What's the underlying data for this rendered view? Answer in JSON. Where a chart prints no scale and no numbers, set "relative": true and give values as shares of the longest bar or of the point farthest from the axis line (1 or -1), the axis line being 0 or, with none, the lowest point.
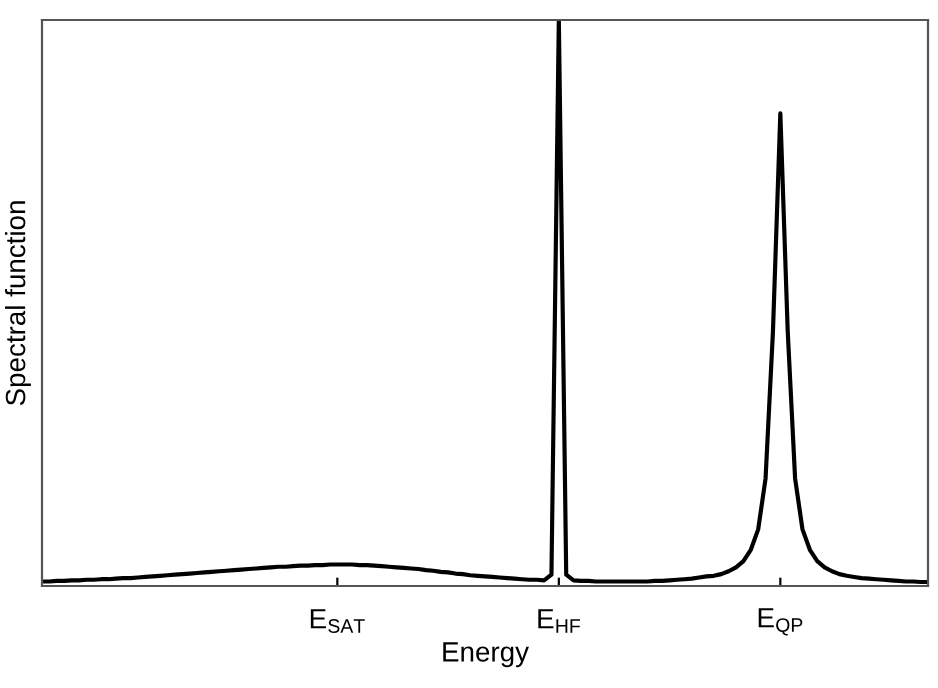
{
  "chart_data": {
    "type": "line",
    "xlabel": "Energy",
    "ylabel": "Spectral function",
    "relative": true,
    "categories": [
      null,
      null,
      null,
      null,
      null,
      null,
      null,
      null,
      null,
      null,
      null,
      null,
      null,
      null,
      null,
      null,
      null,
      null,
      null,
      null,
      null,
      null,
      null,
      null,
      null,
      null,
      null,
      null,
      null,
      null,
      null,
      null,
      null,
      null,
      null,
      null,
      null,
      null,
      null,
      null,
      "E$_{SAT}$",
      null,
      null,
      null,
      null,
      null,
      null,
      null,
      null,
      null,
      null,
      null,
      null,
      null,
      null,
      null,
      null,
      null,
      null,
      null,
      null,
      null,
      null,
      null,
      null,
      null,
      null,
      null,
      null,
      null,
      "E$_{HF}$",
      null,
      null,
      null,
      null,
      null,
      null,
      null,
      null,
      null,
      null,
      null,
      null,
      null,
      null,
      null,
      null,
      null,
      null,
      null,
      null,
      null,
      null,
      null,
      null,
      null,
      null,
      null,
      null,
      null,
      "E$_{QP}$",
      null,
      null,
      null,
      null,
      null,
      null,
      null,
      null,
      null,
      null,
      null,
      null,
      null,
      null,
      null,
      null,
      null,
      null,
      null,
      null
    ],
    "tick_labels": "x",
    "grid": false,
    "legend": false,
    "marker": "none",
    "line_style": "solid",
    "series": [
      {
        "color": "#000000",
        "values": [
          0.008,
          0.008,
          0.009,
          0.009,
          0.01,
          0.01,
          0.011,
          0.011,
          0.012,
          0.012,
          0.013,
          0.014,
          0.014,
          0.015,
          0.016,
          0.017,
          0.018,
          0.019,
          0.02,
          0.021,
          0.022,
          0.023,
          0.024,
          0.025,
          0.026,
          0.027,
          0.028,
          0.029,
          0.03,
          0.031,
          0.032,
          0.033,
          0.034,
          0.034,
          0.035,
          0.036,
          0.036,
          0.037,
          0.037,
          0.038,
          0.038,
          0.038,
          0.038,
          0.037,
          0.037,
          0.036,
          0.035,
          0.034,
          0.033,
          0.032,
          0.031,
          0.03,
          0.028,
          0.027,
          0.025,
          0.024,
          0.022,
          0.021,
          0.019,
          0.018,
          0.017,
          0.016,
          0.015,
          0.014,
          0.013,
          0.012,
          0.011,
          0.011,
          0.01,
          0.02,
          1.0,
          0.02,
          0.01,
          0.009,
          0.009,
          0.008,
          0.008,
          0.008,
          0.008,
          0.008,
          0.008,
          0.008,
          0.008,
          0.009,
          0.009,
          0.01,
          0.011,
          0.012,
          0.013,
          0.015,
          0.017,
          0.018,
          0.021,
          0.026,
          0.033,
          0.044,
          0.064,
          0.1,
          0.19,
          0.45,
          0.835,
          0.45,
          0.19,
          0.1,
          0.064,
          0.044,
          0.033,
          0.026,
          0.021,
          0.018,
          0.016,
          0.014,
          0.013,
          0.012,
          0.011,
          0.01,
          0.009,
          0.008,
          0.008,
          0.007,
          0.007
        ]
      }
    ]
  }
}
